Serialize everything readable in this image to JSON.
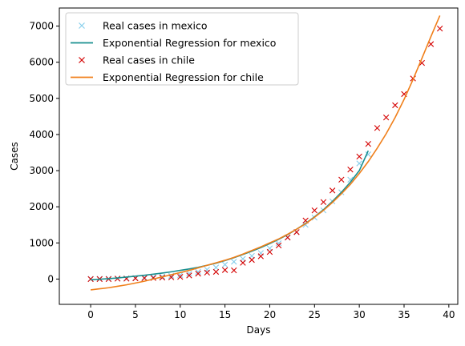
{
  "chart_data": {
    "type": "scatter",
    "title": "",
    "xlabel": "Days",
    "ylabel": "Cases",
    "xlim": [
      -3.5,
      41.0
    ],
    "ylim": [
      -700,
      7500
    ],
    "xticks": [
      0,
      5,
      10,
      15,
      20,
      25,
      30,
      35,
      40
    ],
    "yticks": [
      0,
      1000,
      2000,
      3000,
      4000,
      5000,
      6000,
      7000
    ],
    "grid": false,
    "legend_position": "top-left",
    "series": [
      {
        "name": "Real cases in mexico",
        "kind": "markers",
        "marker": "x",
        "color": "#87CEEB",
        "x": [
          0,
          1,
          2,
          3,
          4,
          5,
          6,
          7,
          8,
          9,
          10,
          11,
          12,
          13,
          14,
          15,
          16,
          17,
          18,
          19,
          20,
          21,
          22,
          23,
          24,
          25,
          26,
          27,
          28,
          29,
          30,
          31
        ],
        "y": [
          5,
          7,
          10,
          15,
          20,
          30,
          40,
          55,
          70,
          90,
          110,
          150,
          200,
          260,
          320,
          400,
          480,
          560,
          640,
          720,
          850,
          990,
          1150,
          1300,
          1500,
          1700,
          1900,
          2150,
          2400,
          2750,
          3200,
          3450
        ]
      },
      {
        "name": "Exponential Regression for mexico",
        "kind": "line",
        "color": "#1a8f8f",
        "x": [
          0,
          1,
          2,
          3,
          4,
          5,
          6,
          7,
          8,
          9,
          10,
          11,
          12,
          13,
          14,
          15,
          16,
          17,
          18,
          19,
          20,
          21,
          22,
          23,
          24,
          25,
          26,
          27,
          28,
          29,
          30,
          31
        ],
        "y": [
          -20,
          -5,
          10,
          30,
          55,
          80,
          105,
          135,
          165,
          200,
          240,
          280,
          325,
          380,
          440,
          510,
          590,
          680,
          770,
          870,
          980,
          1100,
          1230,
          1380,
          1540,
          1720,
          1920,
          2150,
          2400,
          2680,
          3000,
          3550
        ]
      },
      {
        "name": "Real cases in chile",
        "kind": "markers",
        "marker": "x",
        "color": "#d40000",
        "x": [
          0,
          1,
          2,
          3,
          4,
          5,
          6,
          7,
          8,
          9,
          10,
          11,
          12,
          13,
          14,
          15,
          16,
          17,
          18,
          19,
          20,
          21,
          22,
          23,
          24,
          25,
          26,
          27,
          28,
          29,
          30,
          31,
          32,
          33,
          34,
          35,
          36,
          37,
          38,
          39
        ],
        "y": [
          0,
          0,
          0,
          10,
          10,
          20,
          25,
          30,
          40,
          50,
          60,
          100,
          150,
          180,
          200,
          250,
          240,
          450,
          530,
          630,
          750,
          930,
          1150,
          1300,
          1620,
          1900,
          2130,
          2450,
          2750,
          3030,
          3390,
          3740,
          4180,
          4470,
          4810,
          5120,
          5550,
          5980,
          6500,
          6930
        ]
      },
      {
        "name": "Exponential Regression for chile",
        "kind": "line",
        "color": "#f07f1a",
        "x": [
          0,
          1,
          2,
          3,
          4,
          5,
          6,
          7,
          8,
          9,
          10,
          11,
          12,
          13,
          14,
          15,
          16,
          17,
          18,
          19,
          20,
          21,
          22,
          23,
          24,
          25,
          26,
          27,
          28,
          29,
          30,
          31,
          32,
          33,
          34,
          35,
          36,
          37,
          38,
          39
        ],
        "y": [
          -300,
          -270,
          -240,
          -200,
          -160,
          -110,
          -60,
          0,
          60,
          120,
          180,
          240,
          310,
          380,
          450,
          520,
          600,
          690,
          790,
          890,
          1000,
          1110,
          1240,
          1380,
          1530,
          1710,
          1900,
          2120,
          2360,
          2620,
          2920,
          3250,
          3620,
          4020,
          4470,
          4970,
          5520,
          6110,
          6710,
          7290
        ]
      }
    ]
  }
}
